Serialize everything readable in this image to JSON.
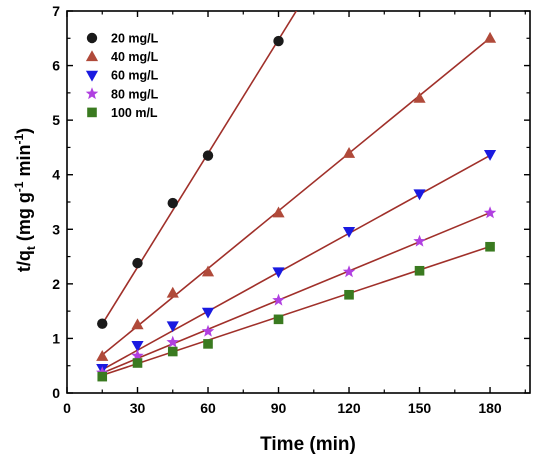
{
  "chart_data": {
    "type": "scatter",
    "xlabel": "Time (min)",
    "ylabel_parts": [
      "t/q",
      "t",
      " (mg g",
      "-1",
      " min",
      "-1",
      ")"
    ],
    "xlim": [
      0,
      197
    ],
    "ylim": [
      0,
      7
    ],
    "xticks": [
      0,
      30,
      60,
      90,
      120,
      150,
      180
    ],
    "yticks": [
      0,
      1,
      2,
      3,
      4,
      5,
      6,
      7
    ],
    "grid": false,
    "legend_position": "top-left",
    "fit_line_color": "#a0302a",
    "series": [
      {
        "name": "20 mg/L",
        "marker": "circle",
        "color": "#1a1a1a",
        "x": [
          15,
          30,
          45,
          60,
          90
        ],
        "y": [
          1.27,
          2.38,
          3.48,
          4.35,
          6.45
        ],
        "fit_slope": 0.0695,
        "fit_intercept": 0.22
      },
      {
        "name": "40 mg/L",
        "marker": "triangle-up",
        "color": "#b04a3a",
        "x": [
          15,
          30,
          45,
          60,
          90,
          120,
          150,
          180
        ],
        "y": [
          0.67,
          1.25,
          1.83,
          2.22,
          3.3,
          4.39,
          5.4,
          6.5
        ],
        "fit_slope": 0.0352,
        "fit_intercept": 0.17
      },
      {
        "name": "60 mg/L",
        "marker": "triangle-down",
        "color": "#1a1ae0",
        "x": [
          15,
          30,
          45,
          60,
          90,
          120,
          150,
          180
        ],
        "y": [
          0.45,
          0.87,
          1.23,
          1.48,
          2.22,
          2.96,
          3.65,
          4.37
        ],
        "fit_slope": 0.0238,
        "fit_intercept": 0.07
      },
      {
        "name": "80 mg/L",
        "marker": "star",
        "color": "#b040e0",
        "x": [
          15,
          30,
          45,
          60,
          90,
          120,
          150,
          180
        ],
        "y": [
          0.37,
          0.68,
          0.93,
          1.13,
          1.7,
          2.22,
          2.78,
          3.3
        ],
        "fit_slope": 0.0178,
        "fit_intercept": 0.1
      },
      {
        "name": "100 m/L",
        "marker": "square",
        "color": "#3a7a20",
        "x": [
          15,
          30,
          45,
          60,
          90,
          120,
          150,
          180
        ],
        "y": [
          0.3,
          0.55,
          0.76,
          0.9,
          1.35,
          1.8,
          2.24,
          2.68
        ],
        "fit_slope": 0.0143,
        "fit_intercept": 0.11
      }
    ]
  }
}
